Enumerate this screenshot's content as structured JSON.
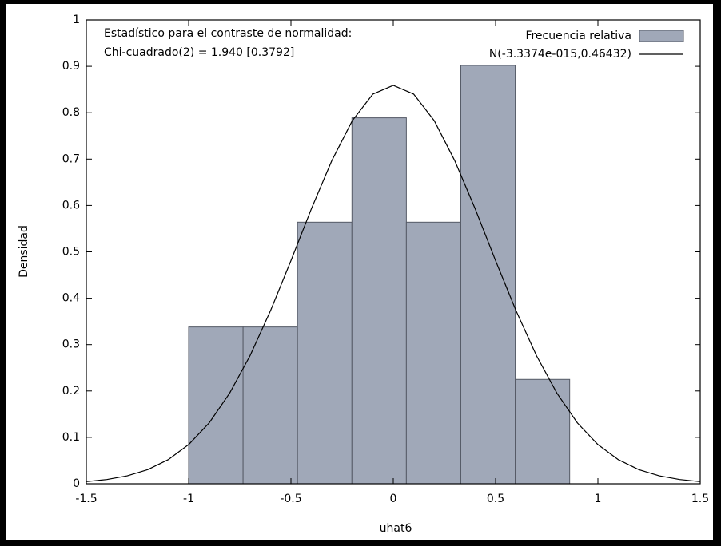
{
  "chart_data": {
    "type": "histogram",
    "annotations": [
      "Estadístico para el contraste de normalidad:",
      "Chi-cuadrado(2) = 1.940 [0.3792]"
    ],
    "xlabel": "uhat6",
    "ylabel": "Densidad",
    "bins": [
      -1.0,
      -0.734,
      -0.468,
      -0.202,
      0.064,
      0.33,
      0.596,
      0.862
    ],
    "series": [
      {
        "name": "Frecuencia relativa",
        "type": "histogram",
        "color": "#a0a8b8",
        "values": [
          0.338,
          0.338,
          0.564,
          0.789,
          0.564,
          0.902,
          0.225
        ]
      },
      {
        "name": "N(-3.3374e-015,0.46432)",
        "type": "line",
        "color": "#000000",
        "x": [
          -1.5,
          -1.4,
          -1.3,
          -1.2,
          -1.1,
          -1.0,
          -0.9,
          -0.8,
          -0.7,
          -0.6,
          -0.5,
          -0.4,
          -0.3,
          -0.2,
          -0.1,
          0,
          0.1,
          0.2,
          0.3,
          0.4,
          0.5,
          0.6,
          0.7,
          0.8,
          0.9,
          1.0,
          1.1,
          1.2,
          1.3,
          1.4,
          1.5
        ],
        "values": [
          0.0046,
          0.0091,
          0.0171,
          0.0304,
          0.0519,
          0.0845,
          0.131,
          0.195,
          0.276,
          0.373,
          0.481,
          0.593,
          0.697,
          0.783,
          0.84,
          0.859,
          0.84,
          0.783,
          0.697,
          0.593,
          0.481,
          0.373,
          0.276,
          0.195,
          0.131,
          0.0845,
          0.0519,
          0.0304,
          0.0171,
          0.0091,
          0.0046
        ]
      }
    ],
    "xlim": [
      -1.5,
      1.5
    ],
    "ylim": [
      0,
      1
    ],
    "xticks": [
      -1.5,
      -1,
      -0.5,
      0,
      0.5,
      1,
      1.5
    ],
    "yticks": [
      0,
      0.1,
      0.2,
      0.3,
      0.4,
      0.5,
      0.6,
      0.7,
      0.8,
      0.9,
      1
    ],
    "grid": false,
    "legend": "upper right"
  }
}
